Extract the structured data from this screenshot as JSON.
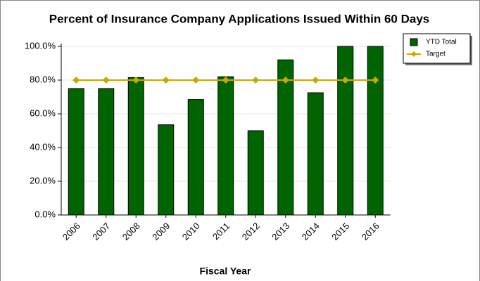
{
  "chart_data": {
    "type": "bar",
    "title": "Percent of Insurance Company Applications Issued Within 60 Days",
    "x_label": "Fiscal Year",
    "categories": [
      "2006",
      "2007",
      "2008",
      "2009",
      "2010",
      "2011",
      "2012",
      "2013",
      "2014",
      "2015",
      "2016"
    ],
    "series": [
      {
        "name": "YTD Total",
        "type": "bar",
        "color": "#006400",
        "values": [
          75,
          75,
          81.5,
          53.5,
          68.5,
          82,
          50,
          92,
          72.5,
          100,
          100
        ]
      },
      {
        "name": "Target",
        "type": "line",
        "color": "#c8a800",
        "values": [
          80,
          80,
          80,
          80,
          80,
          80,
          80,
          80,
          80,
          80,
          80
        ]
      }
    ],
    "ylim": [
      0,
      100
    ],
    "yticks": [
      {
        "value": 0,
        "label": "0.0%"
      },
      {
        "value": 20,
        "label": "20.0%"
      },
      {
        "value": 40,
        "label": "40.0%"
      },
      {
        "value": 60,
        "label": "60.0%"
      },
      {
        "value": 80,
        "label": "80.0%"
      },
      {
        "value": 100,
        "label": "100.0%"
      }
    ],
    "grid": true,
    "legend": "top-right"
  }
}
